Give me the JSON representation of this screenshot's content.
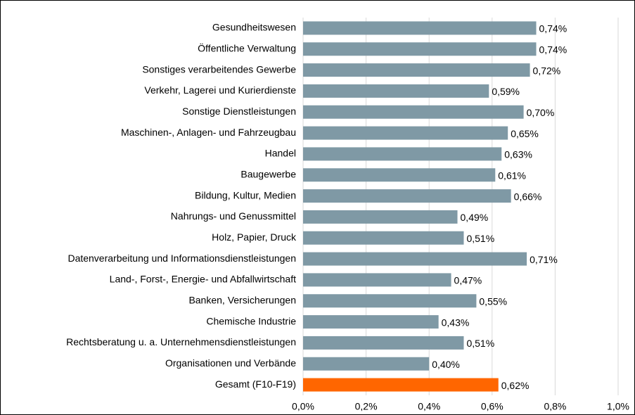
{
  "chart_data": {
    "type": "bar",
    "orientation": "horizontal",
    "categories": [
      "Gesundheitswesen",
      "Öffentliche Verwaltung",
      "Sonstiges verarbeitendes Gewerbe",
      "Verkehr, Lagerei und Kurierdienste",
      "Sonstige Dienstleistungen",
      "Maschinen-, Anlagen- und Fahrzeugbau",
      "Handel",
      "Baugewerbe",
      "Bildung, Kultur, Medien",
      "Nahrungs- und Genussmittel",
      "Holz, Papier, Druck",
      "Datenverarbeitung und Informationsdienstleistungen",
      "Land-, Forst-,  Energie- und Abfallwirtschaft",
      "Banken, Versicherungen",
      "Chemische Industrie",
      "Rechtsberatung u. a. Unternehmensdienstleistungen",
      "Organisationen und Verbände",
      "Gesamt (F10-F19)"
    ],
    "values": [
      0.74,
      0.74,
      0.72,
      0.59,
      0.7,
      0.65,
      0.63,
      0.61,
      0.66,
      0.49,
      0.51,
      0.71,
      0.47,
      0.55,
      0.43,
      0.51,
      0.4,
      0.62
    ],
    "value_labels": [
      "0,74%",
      "0,74%",
      "0,72%",
      "0,59%",
      "0,70%",
      "0,65%",
      "0,63%",
      "0,61%",
      "0,66%",
      "0,49%",
      "0,51%",
      "0,71%",
      "0,47%",
      "0,55%",
      "0,43%",
      "0,51%",
      "0,40%",
      "0,62%"
    ],
    "colors": [
      "#7f99a5",
      "#7f99a5",
      "#7f99a5",
      "#7f99a5",
      "#7f99a5",
      "#7f99a5",
      "#7f99a5",
      "#7f99a5",
      "#7f99a5",
      "#7f99a5",
      "#7f99a5",
      "#7f99a5",
      "#7f99a5",
      "#7f99a5",
      "#7f99a5",
      "#7f99a5",
      "#7f99a5",
      "#ff6600"
    ],
    "xlim": [
      0,
      1.0
    ],
    "xticks": [
      {
        "value": 0,
        "label": "0,0%"
      },
      {
        "value": 0.2,
        "label": "0,2%"
      },
      {
        "value": 0.4,
        "label": "0,4%"
      },
      {
        "value": 0.6,
        "label": "0,6%"
      },
      {
        "value": 0.8,
        "label": "0,8%"
      },
      {
        "value": 1.0,
        "label": "1,0%"
      }
    ],
    "grid": true
  }
}
